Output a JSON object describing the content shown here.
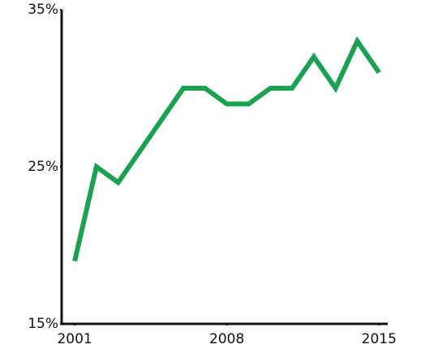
{
  "chart_data": {
    "type": "line",
    "x": [
      2001,
      2002,
      2003,
      2004,
      2005,
      2006,
      2007,
      2008,
      2009,
      2010,
      2011,
      2012,
      2013,
      2014,
      2015
    ],
    "series": [
      {
        "color": "#1aa152",
        "values": [
          19,
          25,
          24,
          26,
          28,
          30,
          30,
          29,
          29,
          30,
          30,
          32,
          30,
          33,
          31
        ]
      }
    ],
    "xlim": [
      2000.4,
      2015.4
    ],
    "xticks": [
      2001,
      2008,
      2015
    ],
    "ylim": [
      15,
      35
    ],
    "yticks": [
      {
        "value": 15,
        "label": "15%"
      },
      {
        "value": 25,
        "label": "25%"
      },
      {
        "value": 35,
        "label": "35%"
      }
    ]
  }
}
